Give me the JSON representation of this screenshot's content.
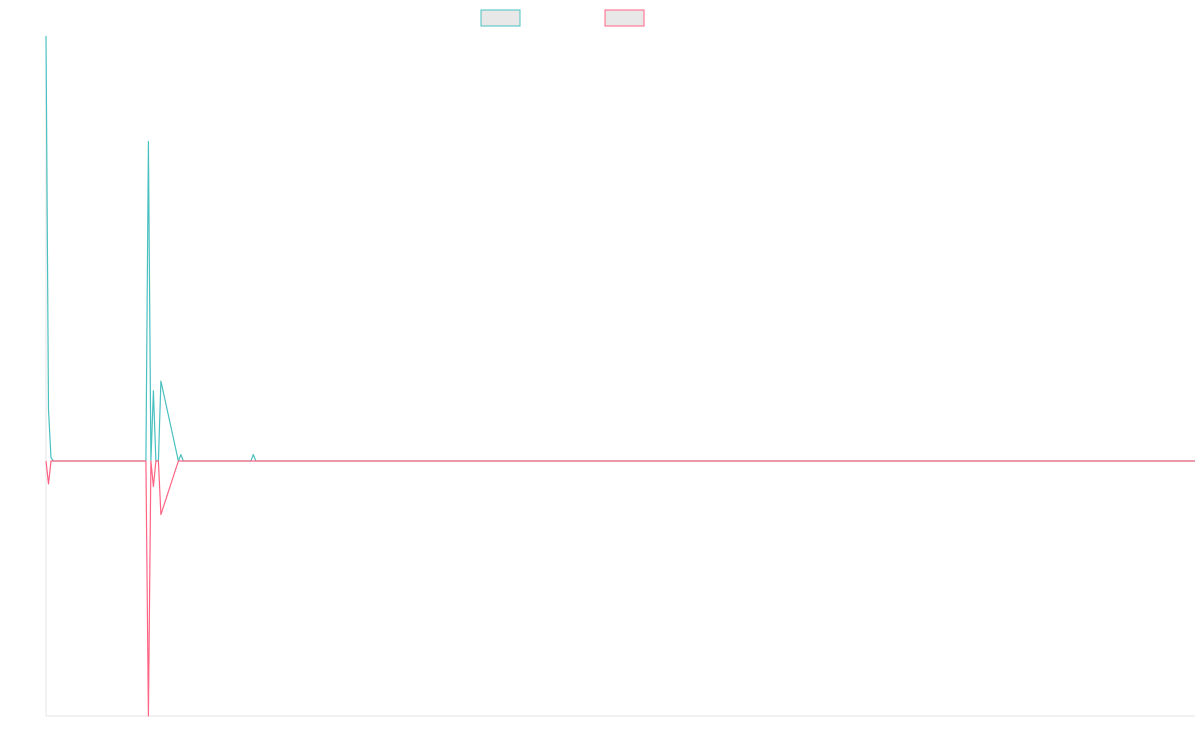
{
  "chart_data": {
    "type": "line",
    "title": "",
    "xlabel": "",
    "ylabel": "",
    "grid": false,
    "legend_position": "top-center",
    "x": [
      0,
      1,
      2,
      3,
      40,
      41,
      42,
      43,
      44,
      45,
      46,
      53,
      54,
      55,
      82,
      83,
      84,
      460
    ],
    "ylim": [
      -100,
      133
    ],
    "series": [
      {
        "name": "",
        "color": "#4bc0c0",
        "values": [
          133,
          16,
          1,
          0,
          0,
          100,
          0,
          22,
          0,
          0,
          25,
          0,
          2,
          0,
          0,
          2,
          0,
          0
        ]
      },
      {
        "name": "",
        "color": "#ff6384",
        "values": [
          0,
          -9,
          0,
          0,
          0,
          -100,
          0,
          -10,
          0,
          0,
          -21,
          0,
          0,
          0,
          0,
          0,
          0,
          0
        ]
      }
    ]
  }
}
